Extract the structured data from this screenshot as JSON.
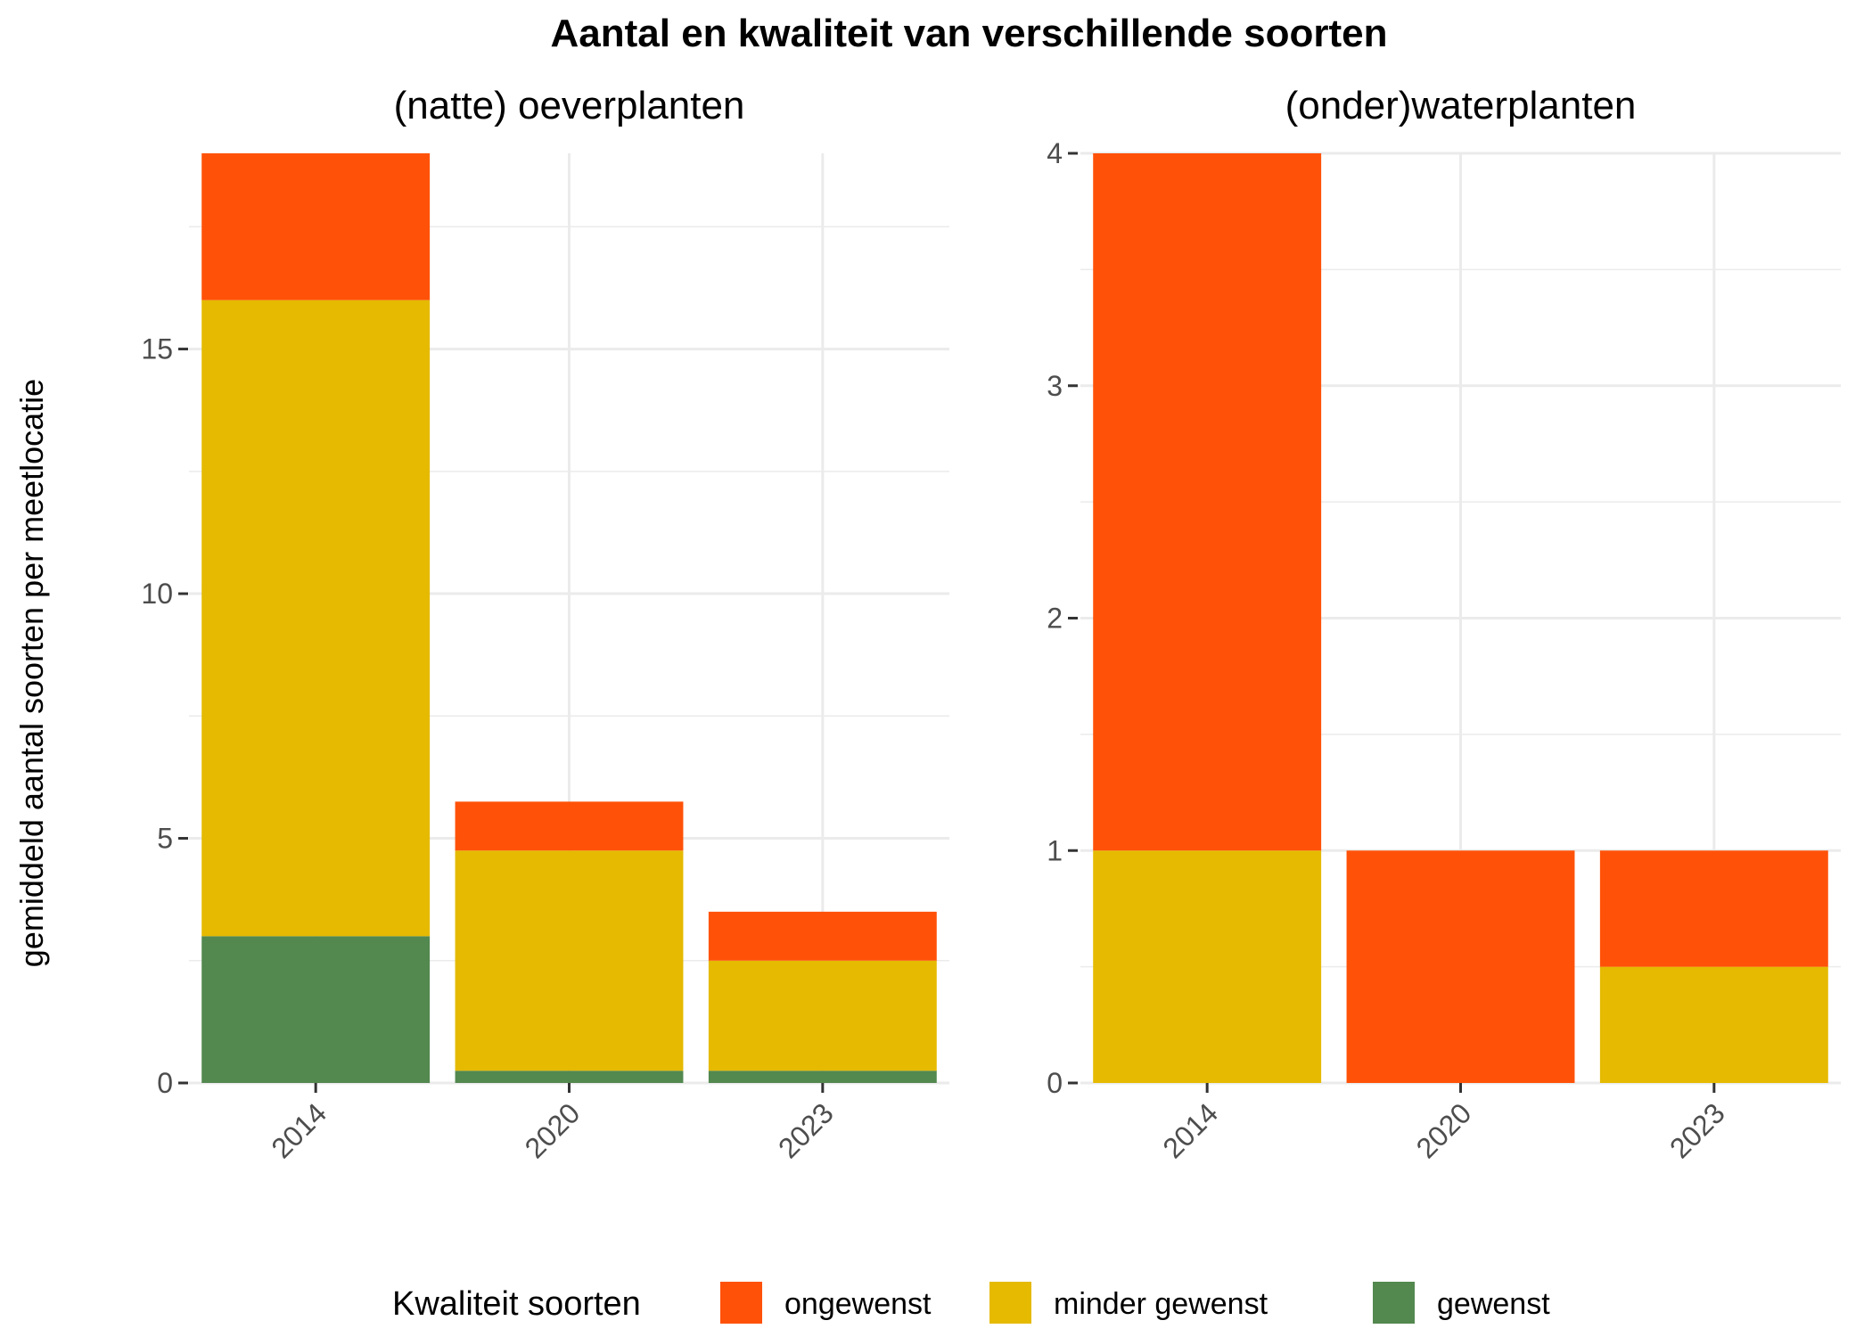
{
  "colors": {
    "ongewenst": "#FF5208",
    "minder gewenst": "#E5BA00",
    "gewenst": "#53884F"
  },
  "chart_data": {
    "type": "bar",
    "stacked": true,
    "title": "Aantal en kwaliteit van verschillende soorten",
    "ylabel": "gemiddeld aantal soorten per meetlocatie",
    "xlabel": "",
    "grid": true,
    "legend": {
      "title": "Kwaliteit soorten",
      "position": "bottom",
      "entries": [
        "ongewenst",
        "minder gewenst",
        "gewenst"
      ]
    },
    "panels": [
      {
        "title": "(natte) oeverplanten",
        "categories": [
          "2014",
          "2020",
          "2023"
        ],
        "ylim": [
          0,
          19
        ],
        "yticks": [
          0,
          5,
          10,
          15
        ],
        "series": [
          {
            "name": "gewenst",
            "values": [
              3,
              0.25,
              0.25
            ]
          },
          {
            "name": "minder gewenst",
            "values": [
              13,
              4.5,
              2.25
            ]
          },
          {
            "name": "ongewenst",
            "values": [
              3,
              1,
              1
            ]
          }
        ]
      },
      {
        "title": "(onder)waterplanten",
        "categories": [
          "2014",
          "2020",
          "2023"
        ],
        "ylim": [
          0,
          4
        ],
        "yticks": [
          0,
          1,
          2,
          3,
          4
        ],
        "series": [
          {
            "name": "gewenst",
            "values": [
              0,
              0,
              0
            ]
          },
          {
            "name": "minder gewenst",
            "values": [
              1,
              0,
              0.5
            ]
          },
          {
            "name": "ongewenst",
            "values": [
              3,
              1,
              0.5
            ]
          }
        ]
      }
    ]
  }
}
